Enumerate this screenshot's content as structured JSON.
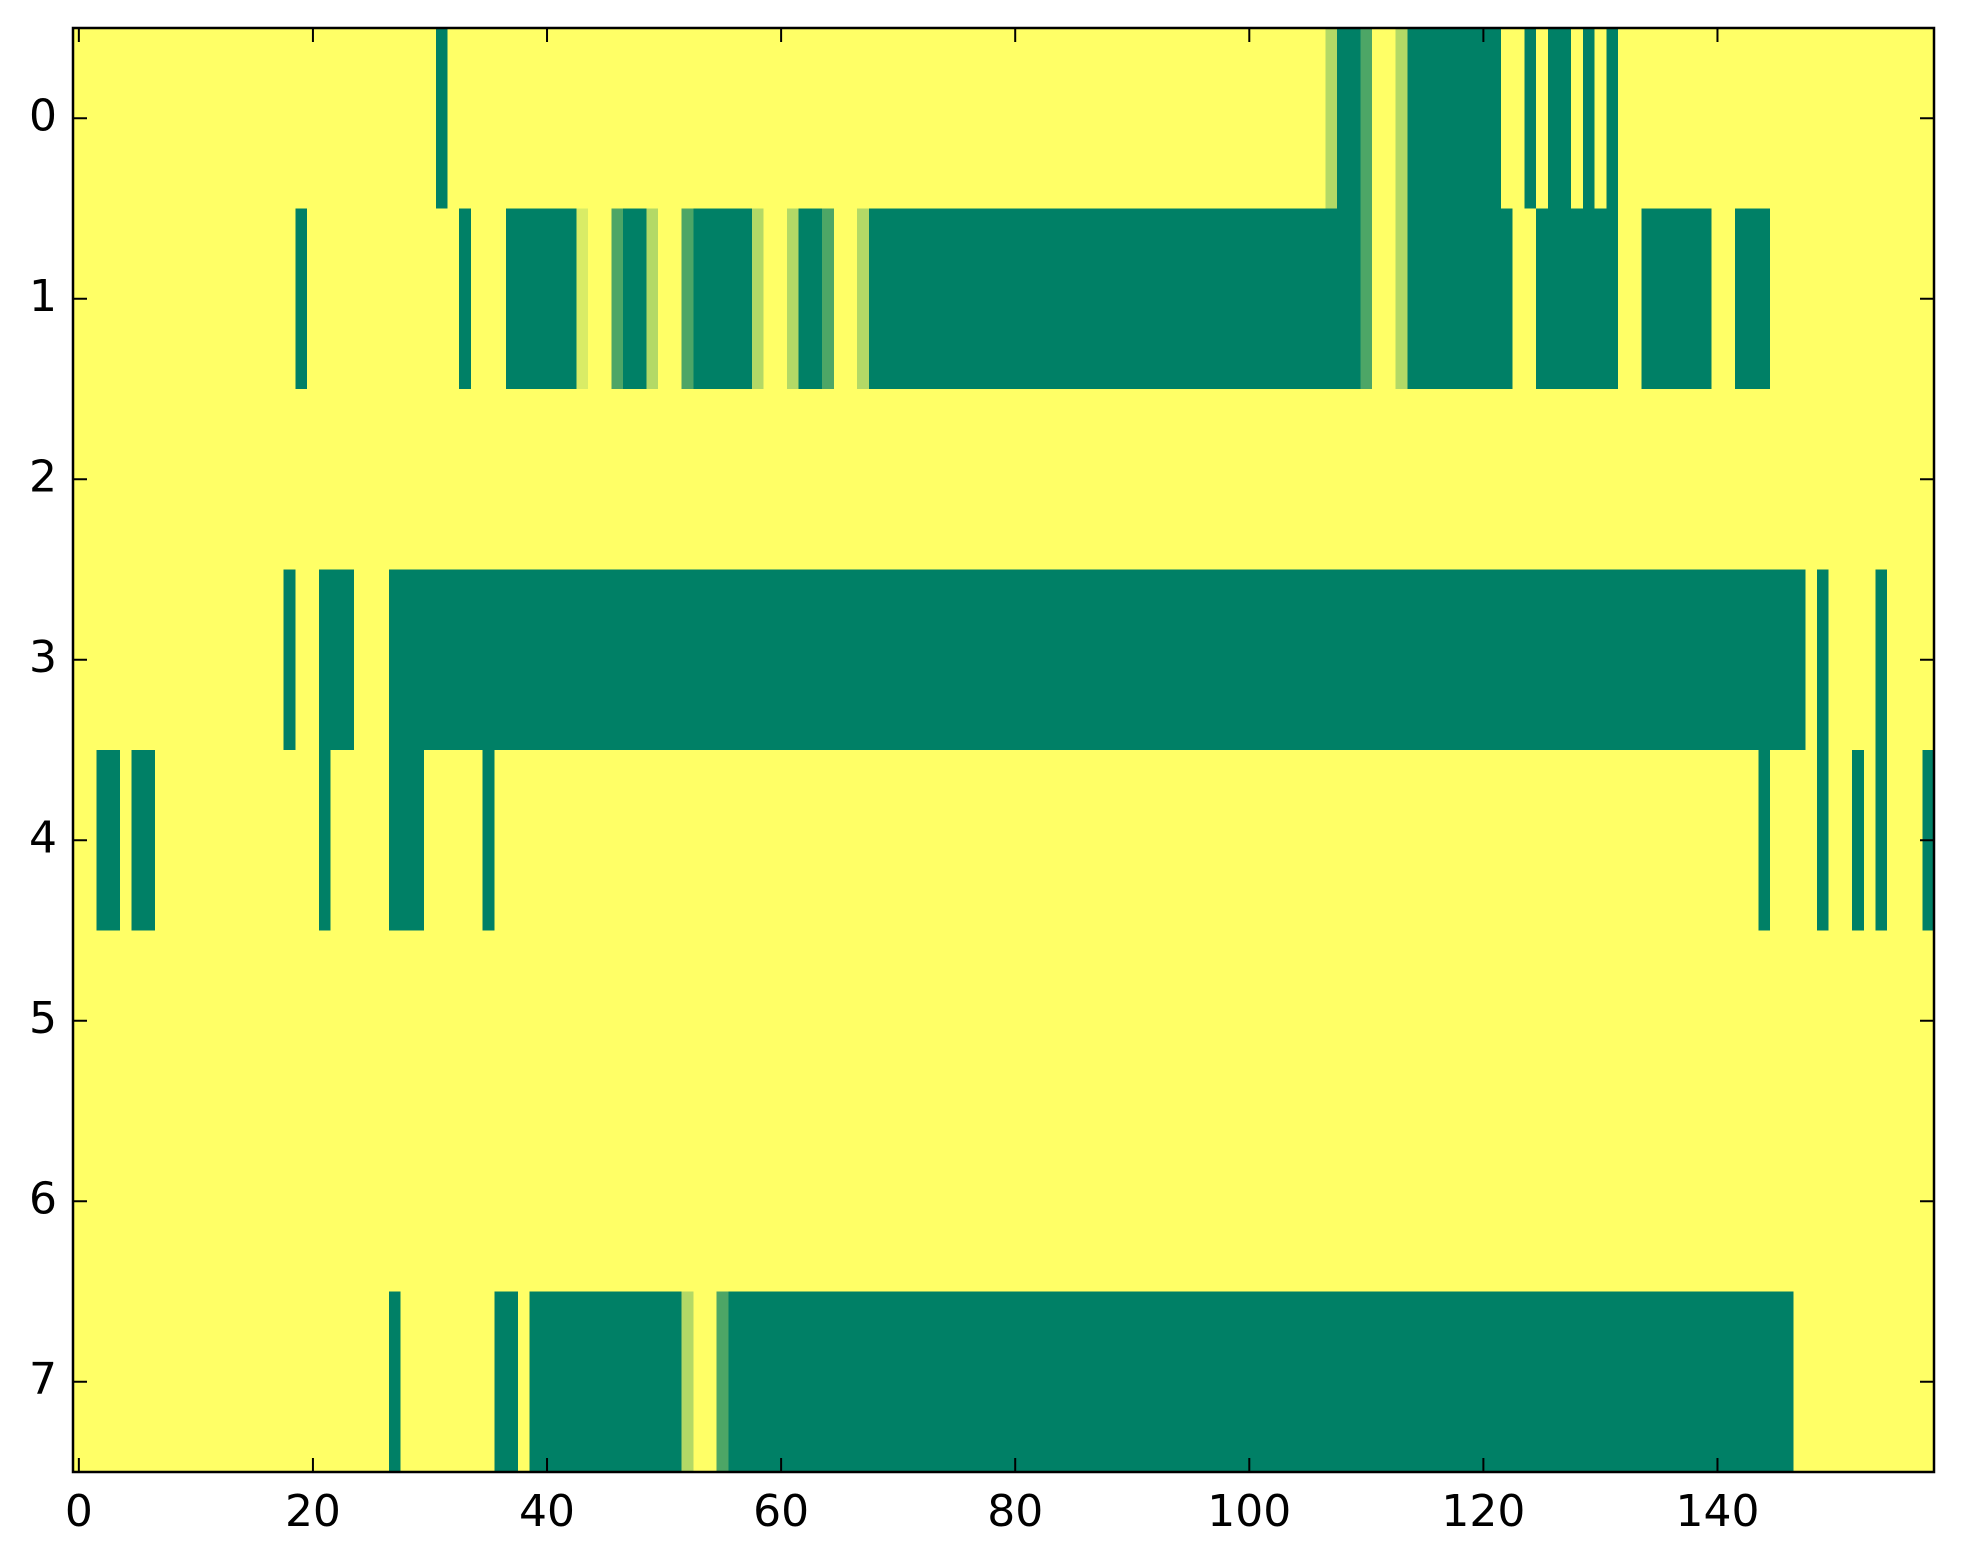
{
  "chart_data": {
    "type": "heatmap",
    "cmap": "summer",
    "clim": [
      0,
      1
    ],
    "xlim": [
      -0.5,
      158.5
    ],
    "ylim": [
      7.5,
      -0.5
    ],
    "xticks": [
      0,
      20,
      40,
      60,
      80,
      100,
      120,
      140
    ],
    "yticks": [
      0,
      1,
      2,
      3,
      4,
      5,
      6,
      7
    ],
    "values": [
      [
        1,
        1,
        1,
        1,
        1,
        1,
        1,
        1,
        1,
        1,
        1,
        1,
        1,
        1,
        1,
        1,
        1,
        1,
        1,
        1,
        1,
        1,
        1,
        1,
        1,
        1,
        1,
        1,
        1,
        1,
        1,
        0,
        1,
        1,
        1,
        1,
        1,
        1,
        1,
        1,
        1,
        1,
        1,
        1,
        1,
        1,
        1,
        1,
        1,
        1,
        1,
        1,
        1,
        1,
        1,
        1,
        1,
        1,
        1,
        1,
        1,
        1,
        1,
        1,
        1,
        1,
        1,
        1,
        1,
        1,
        1,
        1,
        1,
        1,
        1,
        1,
        1,
        1,
        1,
        1,
        1,
        1,
        1,
        1,
        1,
        1,
        1,
        1,
        1,
        1,
        1,
        1,
        1,
        1,
        1,
        1,
        1,
        1,
        1,
        1,
        1,
        1,
        1,
        1,
        1,
        1,
        1,
        0.7,
        0,
        0,
        0.3,
        1,
        1,
        0.7,
        0,
        0,
        0,
        0,
        0,
        0,
        0,
        0,
        1,
        1,
        0,
        1,
        0,
        0,
        1,
        0,
        1,
        0,
        1,
        1,
        1,
        1,
        1,
        1,
        1,
        1,
        1,
        1,
        1,
        1,
        1,
        1,
        1,
        1,
        1,
        1,
        1,
        1,
        1,
        1,
        1,
        1,
        1,
        1,
        1
      ],
      [
        1,
        1,
        1,
        1,
        1,
        1,
        1,
        1,
        1,
        1,
        1,
        1,
        1,
        1,
        1,
        1,
        1,
        1,
        1,
        0,
        1,
        1,
        1,
        1,
        1,
        1,
        1,
        1,
        1,
        1,
        1,
        1,
        1,
        0,
        1,
        1,
        1,
        0,
        0,
        0,
        0,
        0,
        0,
        0.85,
        1,
        1,
        0.3,
        0,
        0,
        0.7,
        1,
        1,
        0.3,
        0,
        0,
        0,
        0,
        0,
        0.7,
        1,
        1,
        0.7,
        0,
        0,
        0.3,
        1,
        1,
        0.7,
        0,
        0,
        0,
        0,
        0,
        0,
        0,
        0,
        0,
        0,
        0,
        0,
        0,
        0,
        0,
        0,
        0,
        0,
        0,
        0,
        0,
        0,
        0,
        0,
        0,
        0,
        0,
        0,
        0,
        0,
        0,
        0,
        0,
        0,
        0,
        0,
        0,
        0,
        0,
        0,
        0,
        0,
        0.3,
        1,
        1,
        0.7,
        0,
        0,
        0,
        0,
        0,
        0,
        0,
        0,
        0,
        1,
        1,
        0,
        0,
        0,
        0,
        0,
        0,
        0,
        1,
        1,
        0,
        0,
        0,
        0,
        0,
        0,
        1,
        1,
        0,
        0,
        0,
        1,
        1,
        1,
        1,
        1,
        1,
        1,
        1,
        1,
        1,
        1,
        1,
        1,
        1
      ],
      [
        1,
        1,
        1,
        1,
        1,
        1,
        1,
        1,
        1,
        1,
        1,
        1,
        1,
        1,
        1,
        1,
        1,
        1,
        1,
        1,
        1,
        1,
        1,
        1,
        1,
        1,
        1,
        1,
        1,
        1,
        1,
        1,
        1,
        1,
        1,
        1,
        1,
        1,
        1,
        1,
        1,
        1,
        1,
        1,
        1,
        1,
        1,
        1,
        1,
        1,
        1,
        1,
        1,
        1,
        1,
        1,
        1,
        1,
        1,
        1,
        1,
        1,
        1,
        1,
        1,
        1,
        1,
        1,
        1,
        1,
        1,
        1,
        1,
        1,
        1,
        1,
        1,
        1,
        1,
        1,
        1,
        1,
        1,
        1,
        1,
        1,
        1,
        1,
        1,
        1,
        1,
        1,
        1,
        1,
        1,
        1,
        1,
        1,
        1,
        1,
        1,
        1,
        1,
        1,
        1,
        1,
        1,
        1,
        1,
        1,
        1,
        1,
        1,
        1,
        1,
        1,
        1,
        1,
        1,
        1,
        1,
        1,
        1,
        1,
        1,
        1,
        1,
        1,
        1,
        1,
        1,
        1,
        1,
        1,
        1,
        1,
        1,
        1,
        1,
        1,
        1,
        1,
        1,
        1,
        1,
        1,
        1,
        1,
        1,
        1,
        1,
        1,
        1,
        1,
        1,
        1,
        1,
        1,
        1
      ],
      [
        1,
        1,
        1,
        1,
        1,
        1,
        1,
        1,
        1,
        1,
        1,
        1,
        1,
        1,
        1,
        1,
        1,
        1,
        0,
        1,
        1,
        0,
        0,
        0,
        1,
        1,
        1,
        0,
        0,
        0,
        0,
        0,
        0,
        0,
        0,
        0,
        0,
        0,
        0,
        0,
        0,
        0,
        0,
        0,
        0,
        0,
        0,
        0,
        0,
        0,
        0,
        0,
        0,
        0,
        0,
        0,
        0,
        0,
        0,
        0,
        0,
        0,
        0,
        0,
        0,
        0,
        0,
        0,
        0,
        0,
        0,
        0,
        0,
        0,
        0,
        0,
        0,
        0,
        0,
        0,
        0,
        0,
        0,
        0,
        0,
        0,
        0,
        0,
        0,
        0,
        0,
        0,
        0,
        0,
        0,
        0,
        0,
        0,
        0,
        0,
        0,
        0,
        0,
        0,
        0,
        0,
        0,
        0,
        0,
        0,
        0,
        0,
        0,
        0,
        0,
        0,
        0,
        0,
        0,
        0,
        0,
        0,
        0,
        0,
        0,
        0,
        0,
        0,
        0,
        0,
        0,
        0,
        0,
        0,
        0,
        0,
        0,
        0,
        0,
        0,
        0,
        0,
        0,
        0,
        0,
        0,
        0,
        0,
        1,
        0,
        1,
        1,
        1,
        1,
        0,
        1,
        1,
        1,
        1
      ],
      [
        1,
        1,
        0,
        0,
        1,
        0,
        0,
        1,
        1,
        1,
        1,
        1,
        1,
        1,
        1,
        1,
        1,
        1,
        1,
        1,
        1,
        0,
        1,
        1,
        1,
        1,
        1,
        0,
        0,
        0,
        1,
        1,
        1,
        1,
        1,
        0,
        1,
        1,
        1,
        1,
        1,
        1,
        1,
        1,
        1,
        1,
        1,
        1,
        1,
        1,
        1,
        1,
        1,
        1,
        1,
        1,
        1,
        1,
        1,
        1,
        1,
        1,
        1,
        1,
        1,
        1,
        1,
        1,
        1,
        1,
        1,
        1,
        1,
        1,
        1,
        1,
        1,
        1,
        1,
        1,
        1,
        1,
        1,
        1,
        1,
        1,
        1,
        1,
        1,
        1,
        1,
        1,
        1,
        1,
        1,
        1,
        1,
        1,
        1,
        1,
        1,
        1,
        1,
        1,
        1,
        1,
        1,
        1,
        1,
        1,
        1,
        1,
        1,
        1,
        1,
        1,
        1,
        1,
        1,
        1,
        1,
        1,
        1,
        1,
        1,
        1,
        1,
        1,
        1,
        1,
        1,
        1,
        1,
        1,
        1,
        1,
        1,
        1,
        1,
        1,
        1,
        1,
        1,
        1,
        0,
        1,
        1,
        1,
        1,
        0,
        1,
        1,
        0,
        1,
        0,
        1,
        1,
        1,
        0
      ],
      [
        1,
        1,
        1,
        1,
        1,
        1,
        1,
        1,
        1,
        1,
        1,
        1,
        1,
        1,
        1,
        1,
        1,
        1,
        1,
        1,
        1,
        1,
        1,
        1,
        1,
        1,
        1,
        1,
        1,
        1,
        1,
        1,
        1,
        1,
        1,
        1,
        1,
        1,
        1,
        1,
        1,
        1,
        1,
        1,
        1,
        1,
        1,
        1,
        1,
        1,
        1,
        1,
        1,
        1,
        1,
        1,
        1,
        1,
        1,
        1,
        1,
        1,
        1,
        1,
        1,
        1,
        1,
        1,
        1,
        1,
        1,
        1,
        1,
        1,
        1,
        1,
        1,
        1,
        1,
        1,
        1,
        1,
        1,
        1,
        1,
        1,
        1,
        1,
        1,
        1,
        1,
        1,
        1,
        1,
        1,
        1,
        1,
        1,
        1,
        1,
        1,
        1,
        1,
        1,
        1,
        1,
        1,
        1,
        1,
        1,
        1,
        1,
        1,
        1,
        1,
        1,
        1,
        1,
        1,
        1,
        1,
        1,
        1,
        1,
        1,
        1,
        1,
        1,
        1,
        1,
        1,
        1,
        1,
        1,
        1,
        1,
        1,
        1,
        1,
        1,
        1,
        1,
        1,
        1,
        1,
        1,
        1,
        1,
        1,
        1,
        1,
        1,
        1,
        1,
        1,
        1,
        1,
        1,
        1
      ],
      [
        1,
        1,
        1,
        1,
        1,
        1,
        1,
        1,
        1,
        1,
        1,
        1,
        1,
        1,
        1,
        1,
        1,
        1,
        1,
        1,
        1,
        1,
        1,
        1,
        1,
        1,
        1,
        1,
        1,
        1,
        1,
        1,
        1,
        1,
        1,
        1,
        1,
        1,
        1,
        1,
        1,
        1,
        1,
        1,
        1,
        1,
        1,
        1,
        1,
        1,
        1,
        1,
        1,
        1,
        1,
        1,
        1,
        1,
        1,
        1,
        1,
        1,
        1,
        1,
        1,
        1,
        1,
        1,
        1,
        1,
        1,
        1,
        1,
        1,
        1,
        1,
        1,
        1,
        1,
        1,
        1,
        1,
        1,
        1,
        1,
        1,
        1,
        1,
        1,
        1,
        1,
        1,
        1,
        1,
        1,
        1,
        1,
        1,
        1,
        1,
        1,
        1,
        1,
        1,
        1,
        1,
        1,
        1,
        1,
        1,
        1,
        1,
        1,
        1,
        1,
        1,
        1,
        1,
        1,
        1,
        1,
        1,
        1,
        1,
        1,
        1,
        1,
        1,
        1,
        1,
        1,
        1,
        1,
        1,
        1,
        1,
        1,
        1,
        1,
        1,
        1,
        1,
        1,
        1,
        1,
        1,
        1,
        1,
        1,
        1,
        1,
        1,
        1,
        1,
        1,
        1,
        1,
        1,
        1
      ],
      [
        1,
        1,
        1,
        1,
        1,
        1,
        1,
        1,
        1,
        1,
        1,
        1,
        1,
        1,
        1,
        1,
        1,
        1,
        1,
        1,
        1,
        1,
        1,
        1,
        1,
        1,
        1,
        0,
        1,
        1,
        1,
        1,
        1,
        1,
        1,
        1,
        0,
        0,
        1,
        0,
        0,
        0,
        0,
        0,
        0,
        0,
        0,
        0,
        0,
        0,
        0,
        0,
        0.7,
        1,
        1,
        0.3,
        0,
        0,
        0,
        0,
        0,
        0,
        0,
        0,
        0,
        0,
        0,
        0,
        0,
        0,
        0,
        0,
        0,
        0,
        0,
        0,
        0,
        0,
        0,
        0,
        0,
        0,
        0,
        0,
        0,
        0,
        0,
        0,
        0,
        0,
        0,
        0,
        0,
        0,
        0,
        0,
        0,
        0,
        0,
        0,
        0,
        0,
        0,
        0,
        0,
        0,
        0,
        0,
        0,
        0,
        0,
        0,
        0,
        0,
        0,
        0,
        0,
        0,
        0,
        0,
        0,
        0,
        0,
        0,
        0,
        0,
        0,
        0,
        0,
        0,
        0,
        0,
        0,
        0,
        0,
        0,
        0,
        0,
        0,
        0,
        0,
        0,
        0,
        0,
        0,
        0,
        0,
        1,
        1,
        1,
        1,
        1,
        1,
        1,
        1,
        1,
        1,
        1,
        1
      ]
    ]
  }
}
